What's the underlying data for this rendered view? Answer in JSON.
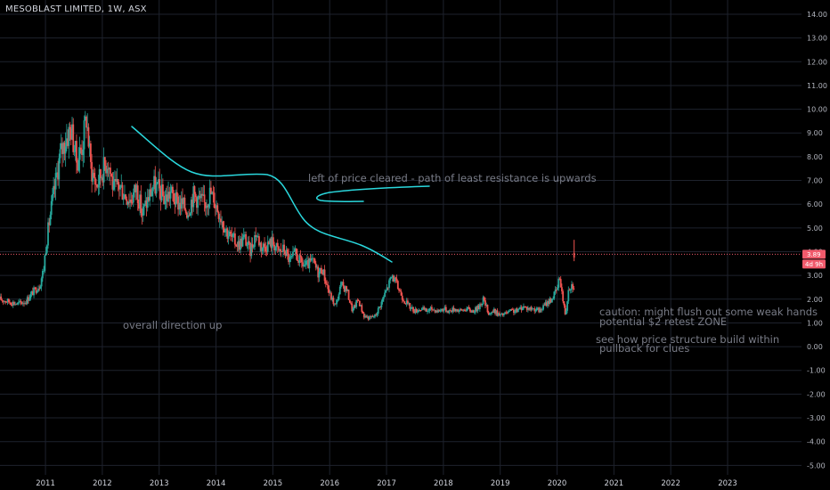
{
  "chart_data": {
    "type": "candlestick",
    "title": "MESOBLAST LIMITED, 1W, ASX",
    "ylim": [
      -5.4,
      14.6
    ],
    "y_ticks": [
      "14.00",
      "13.00",
      "12.00",
      "11.00",
      "10.00",
      "9.00",
      "8.00",
      "7.00",
      "6.00",
      "5.00",
      "4.00",
      "3.00",
      "2.00",
      "1.00",
      "0.00",
      "-1.00",
      "-2.00",
      "-3.00",
      "-4.00",
      "-5.00"
    ],
    "x_ticks": [
      "2011",
      "2012",
      "2013",
      "2014",
      "2015",
      "2016",
      "2017",
      "2018",
      "2019",
      "2020",
      "2021",
      "2022",
      "2023"
    ],
    "x_tick_years": [
      2011,
      2012,
      2013,
      2014,
      2015,
      2016,
      2017,
      2018,
      2019,
      2020,
      2021,
      2022,
      2023
    ],
    "xlim": [
      2010.2,
      2024.3
    ],
    "grid": true,
    "price_series": {
      "x": [
        2010.2,
        2010.35,
        2010.5,
        2010.65,
        2010.78,
        2010.9,
        2010.97,
        2011.0,
        2011.08,
        2011.15,
        2011.25,
        2011.35,
        2011.45,
        2011.55,
        2011.65,
        2011.72,
        2011.8,
        2011.9,
        2012.0,
        2012.1,
        2012.2,
        2012.3,
        2012.4,
        2012.5,
        2012.6,
        2012.7,
        2012.8,
        2012.9,
        2013.0,
        2013.1,
        2013.2,
        2013.3,
        2013.4,
        2013.5,
        2013.6,
        2013.7,
        2013.8,
        2013.9,
        2014.0,
        2014.1,
        2014.2,
        2014.3,
        2014.4,
        2014.5,
        2014.6,
        2014.7,
        2014.8,
        2014.9,
        2015.0,
        2015.1,
        2015.2,
        2015.3,
        2015.4,
        2015.5,
        2015.6,
        2015.7,
        2015.8,
        2015.87,
        2015.9,
        2016.0,
        2016.1,
        2016.2,
        2016.3,
        2016.4,
        2016.5,
        2016.6,
        2016.7,
        2016.8,
        2016.9,
        2017.0,
        2017.1,
        2017.2,
        2017.3,
        2017.4,
        2017.5,
        2017.6,
        2017.7,
        2017.8,
        2017.9,
        2018.0,
        2018.1,
        2018.2,
        2018.3,
        2018.4,
        2018.5,
        2018.6,
        2018.7,
        2018.8,
        2018.9,
        2019.0,
        2019.1,
        2019.2,
        2019.3,
        2019.4,
        2019.5,
        2019.6,
        2019.7,
        2019.8,
        2019.9,
        2019.95,
        2020.0,
        2020.05,
        2020.1,
        2020.15,
        2020.2,
        2020.25,
        2020.3
      ],
      "y": [
        2.0,
        1.9,
        1.8,
        1.9,
        2.3,
        2.6,
        3.3,
        4.1,
        5.5,
        6.5,
        8.0,
        8.7,
        9.2,
        7.8,
        8.5,
        9.7,
        7.5,
        6.8,
        7.4,
        7.9,
        6.6,
        6.8,
        6.4,
        6.2,
        6.7,
        5.6,
        6.2,
        6.8,
        6.6,
        6.2,
        6.5,
        6.1,
        6.0,
        5.7,
        6.4,
        6.2,
        6.0,
        6.5,
        6.0,
        5.4,
        4.8,
        4.5,
        4.3,
        4.6,
        4.0,
        4.8,
        4.2,
        4.3,
        4.4,
        4.0,
        4.1,
        3.6,
        3.9,
        3.5,
        3.4,
        3.6,
        3.1,
        3.3,
        3.0,
        2.2,
        1.7,
        2.6,
        2.4,
        1.5,
        2.0,
        1.3,
        1.2,
        1.3,
        1.8,
        2.4,
        3.0,
        2.5,
        2.0,
        1.7,
        1.5,
        1.6,
        1.5,
        1.6,
        1.5,
        1.6,
        1.5,
        1.6,
        1.5,
        1.6,
        1.5,
        1.6,
        2.0,
        1.4,
        1.5,
        1.3,
        1.4,
        1.5,
        1.5,
        1.7,
        1.6,
        1.6,
        1.5,
        1.8,
        2.0,
        2.2,
        2.4,
        3.0,
        2.0,
        1.3,
        2.5,
        2.6,
        2.6
      ]
    },
    "current_price": 3.89,
    "price_tag_label": "3.89",
    "time_tag_label": "4d 9h",
    "annotations": [
      {
        "text": "left of price cleared - path of least resistance is upwards"
      },
      {
        "text": "overall direction up"
      },
      {
        "text": "caution: might flush out some weak hands"
      },
      {
        "text": "potential $2 retest ZONE"
      },
      {
        "text": "see how price structure build within"
      },
      {
        "text": "pullback for clues"
      }
    ],
    "colors": {
      "background": "#000000",
      "grid": "#1e222d",
      "up": "#26a69a",
      "down": "#ef5350",
      "annotation_line": "#2ad8dd",
      "price_line": "#f15a6c",
      "text": "#b2b5be",
      "annotation_text": "#787b86"
    }
  }
}
